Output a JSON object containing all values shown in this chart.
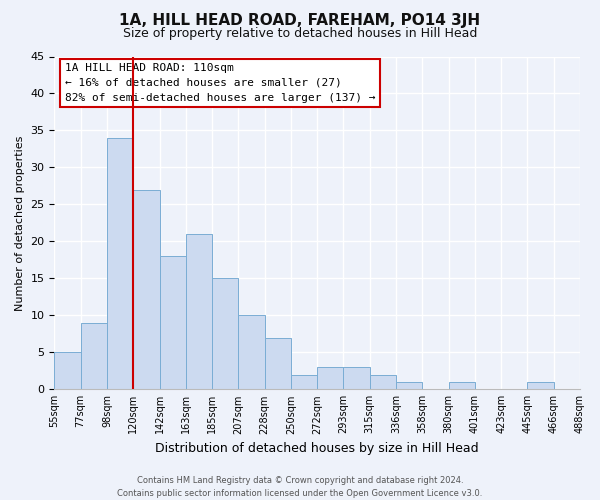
{
  "title": "1A, HILL HEAD ROAD, FAREHAM, PO14 3JH",
  "subtitle": "Size of property relative to detached houses in Hill Head",
  "xlabel": "Distribution of detached houses by size in Hill Head",
  "ylabel": "Number of detached properties",
  "bin_labels": [
    "55sqm",
    "77sqm",
    "98sqm",
    "120sqm",
    "142sqm",
    "163sqm",
    "185sqm",
    "207sqm",
    "228sqm",
    "250sqm",
    "272sqm",
    "293sqm",
    "315sqm",
    "336sqm",
    "358sqm",
    "380sqm",
    "401sqm",
    "423sqm",
    "445sqm",
    "466sqm",
    "488sqm"
  ],
  "bar_values": [
    5,
    9,
    34,
    27,
    18,
    21,
    15,
    10,
    7,
    2,
    3,
    3,
    2,
    1,
    0,
    1,
    0,
    0,
    1,
    0
  ],
  "bar_color": "#ccdaf0",
  "bar_edge_color": "#7aadd4",
  "vline_color": "#cc0000",
  "vline_position": 3,
  "ylim": [
    0,
    45
  ],
  "yticks": [
    0,
    5,
    10,
    15,
    20,
    25,
    30,
    35,
    40,
    45
  ],
  "annotation_title": "1A HILL HEAD ROAD: 110sqm",
  "annotation_line1": "← 16% of detached houses are smaller (27)",
  "annotation_line2": "82% of semi-detached houses are larger (137) →",
  "annotation_box_edge": "#cc0000",
  "footer_line1": "Contains HM Land Registry data © Crown copyright and database right 2024.",
  "footer_line2": "Contains public sector information licensed under the Open Government Licence v3.0.",
  "background_color": "#eef2fa",
  "grid_color": "#ffffff",
  "title_fontsize": 11,
  "subtitle_fontsize": 9,
  "ylabel_fontsize": 8,
  "xlabel_fontsize": 9
}
